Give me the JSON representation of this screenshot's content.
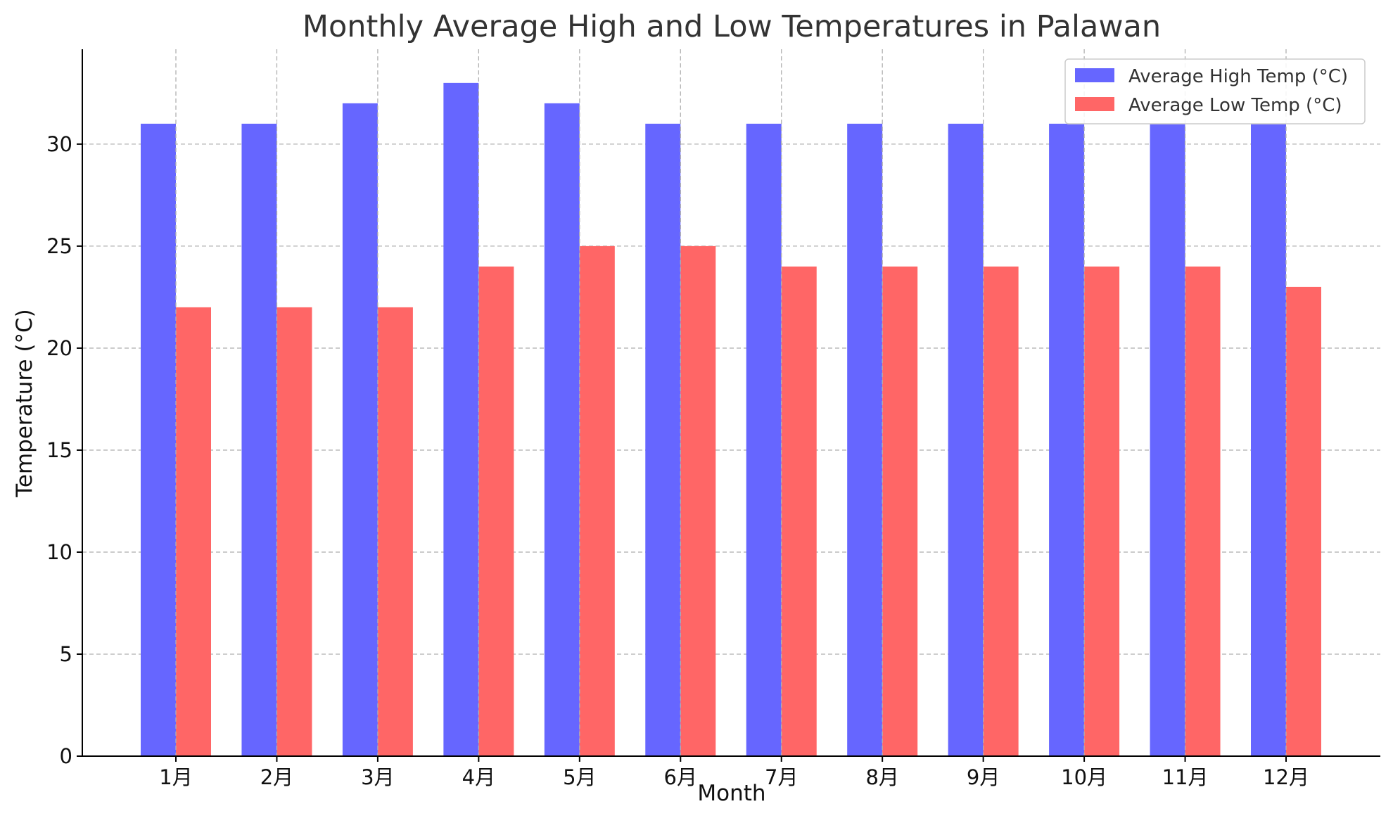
{
  "chart_data": {
    "type": "bar",
    "title": "Monthly Average High and Low Temperatures in Palawan",
    "xlabel": "Month",
    "ylabel": "Temperature (°C)",
    "categories": [
      "1月",
      "2月",
      "3月",
      "4月",
      "5月",
      "6月",
      "7月",
      "8月",
      "9月",
      "10月",
      "11月",
      "12月"
    ],
    "series": [
      {
        "name": "Average High Temp (°C)",
        "color": "#6666ff",
        "values": [
          31,
          31,
          32,
          33,
          32,
          31,
          31,
          31,
          31,
          31,
          31,
          31
        ]
      },
      {
        "name": "Average Low Temp (°C)",
        "color": "#ff6666",
        "values": [
          22,
          22,
          22,
          24,
          25,
          25,
          24,
          24,
          24,
          24,
          24,
          23
        ]
      }
    ],
    "ylim": [
      0,
      34.65
    ],
    "yticks": [
      0,
      5,
      10,
      15,
      20,
      25,
      30
    ],
    "grid": true,
    "legend_position": "top-right"
  }
}
